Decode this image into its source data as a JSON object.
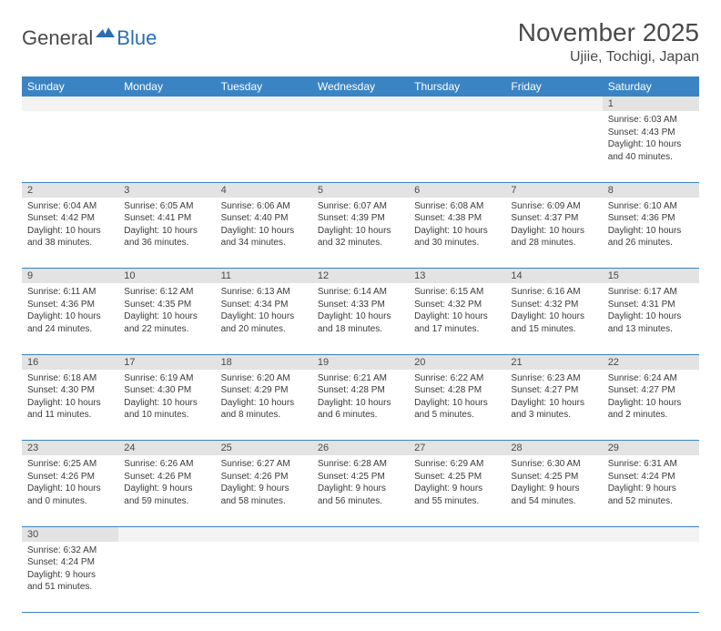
{
  "logo": {
    "text1": "General",
    "text2": "Blue"
  },
  "title": "November 2025",
  "location": "Ujiie, Tochigi, Japan",
  "colors": {
    "header_bg": "#3b84c4",
    "header_text": "#ffffff",
    "daynum_bg": "#e3e3e3",
    "daynum_empty_bg": "#f3f3f3",
    "border": "#3b84c4",
    "logo_gray": "#4a4a4a",
    "logo_blue": "#2b6fb0"
  },
  "weekdays": [
    "Sunday",
    "Monday",
    "Tuesday",
    "Wednesday",
    "Thursday",
    "Friday",
    "Saturday"
  ],
  "weeks": [
    [
      null,
      null,
      null,
      null,
      null,
      null,
      {
        "d": "1",
        "sr": "6:03 AM",
        "ss": "4:43 PM",
        "dl": "10 hours and 40 minutes."
      }
    ],
    [
      {
        "d": "2",
        "sr": "6:04 AM",
        "ss": "4:42 PM",
        "dl": "10 hours and 38 minutes."
      },
      {
        "d": "3",
        "sr": "6:05 AM",
        "ss": "4:41 PM",
        "dl": "10 hours and 36 minutes."
      },
      {
        "d": "4",
        "sr": "6:06 AM",
        "ss": "4:40 PM",
        "dl": "10 hours and 34 minutes."
      },
      {
        "d": "5",
        "sr": "6:07 AM",
        "ss": "4:39 PM",
        "dl": "10 hours and 32 minutes."
      },
      {
        "d": "6",
        "sr": "6:08 AM",
        "ss": "4:38 PM",
        "dl": "10 hours and 30 minutes."
      },
      {
        "d": "7",
        "sr": "6:09 AM",
        "ss": "4:37 PM",
        "dl": "10 hours and 28 minutes."
      },
      {
        "d": "8",
        "sr": "6:10 AM",
        "ss": "4:36 PM",
        "dl": "10 hours and 26 minutes."
      }
    ],
    [
      {
        "d": "9",
        "sr": "6:11 AM",
        "ss": "4:36 PM",
        "dl": "10 hours and 24 minutes."
      },
      {
        "d": "10",
        "sr": "6:12 AM",
        "ss": "4:35 PM",
        "dl": "10 hours and 22 minutes."
      },
      {
        "d": "11",
        "sr": "6:13 AM",
        "ss": "4:34 PM",
        "dl": "10 hours and 20 minutes."
      },
      {
        "d": "12",
        "sr": "6:14 AM",
        "ss": "4:33 PM",
        "dl": "10 hours and 18 minutes."
      },
      {
        "d": "13",
        "sr": "6:15 AM",
        "ss": "4:32 PM",
        "dl": "10 hours and 17 minutes."
      },
      {
        "d": "14",
        "sr": "6:16 AM",
        "ss": "4:32 PM",
        "dl": "10 hours and 15 minutes."
      },
      {
        "d": "15",
        "sr": "6:17 AM",
        "ss": "4:31 PM",
        "dl": "10 hours and 13 minutes."
      }
    ],
    [
      {
        "d": "16",
        "sr": "6:18 AM",
        "ss": "4:30 PM",
        "dl": "10 hours and 11 minutes."
      },
      {
        "d": "17",
        "sr": "6:19 AM",
        "ss": "4:30 PM",
        "dl": "10 hours and 10 minutes."
      },
      {
        "d": "18",
        "sr": "6:20 AM",
        "ss": "4:29 PM",
        "dl": "10 hours and 8 minutes."
      },
      {
        "d": "19",
        "sr": "6:21 AM",
        "ss": "4:28 PM",
        "dl": "10 hours and 6 minutes."
      },
      {
        "d": "20",
        "sr": "6:22 AM",
        "ss": "4:28 PM",
        "dl": "10 hours and 5 minutes."
      },
      {
        "d": "21",
        "sr": "6:23 AM",
        "ss": "4:27 PM",
        "dl": "10 hours and 3 minutes."
      },
      {
        "d": "22",
        "sr": "6:24 AM",
        "ss": "4:27 PM",
        "dl": "10 hours and 2 minutes."
      }
    ],
    [
      {
        "d": "23",
        "sr": "6:25 AM",
        "ss": "4:26 PM",
        "dl": "10 hours and 0 minutes."
      },
      {
        "d": "24",
        "sr": "6:26 AM",
        "ss": "4:26 PM",
        "dl": "9 hours and 59 minutes."
      },
      {
        "d": "25",
        "sr": "6:27 AM",
        "ss": "4:26 PM",
        "dl": "9 hours and 58 minutes."
      },
      {
        "d": "26",
        "sr": "6:28 AM",
        "ss": "4:25 PM",
        "dl": "9 hours and 56 minutes."
      },
      {
        "d": "27",
        "sr": "6:29 AM",
        "ss": "4:25 PM",
        "dl": "9 hours and 55 minutes."
      },
      {
        "d": "28",
        "sr": "6:30 AM",
        "ss": "4:25 PM",
        "dl": "9 hours and 54 minutes."
      },
      {
        "d": "29",
        "sr": "6:31 AM",
        "ss": "4:24 PM",
        "dl": "9 hours and 52 minutes."
      }
    ],
    [
      {
        "d": "30",
        "sr": "6:32 AM",
        "ss": "4:24 PM",
        "dl": "9 hours and 51 minutes."
      },
      null,
      null,
      null,
      null,
      null,
      null
    ]
  ],
  "labels": {
    "sunrise": "Sunrise:",
    "sunset": "Sunset:",
    "daylight": "Daylight:"
  }
}
